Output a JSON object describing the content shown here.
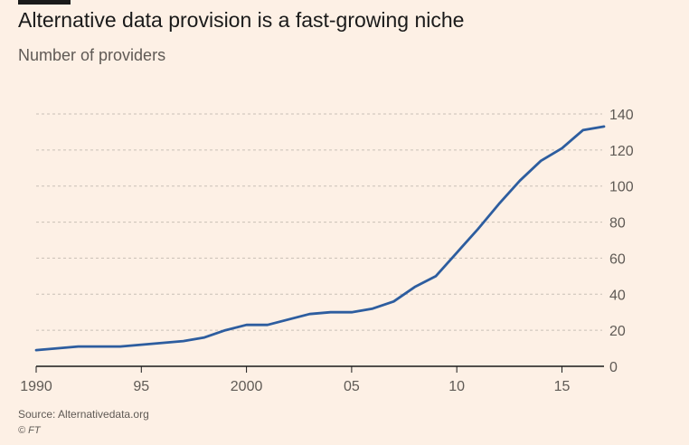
{
  "header": {
    "title": "Alternative data provision is a fast-growing niche",
    "subtitle": "Number of providers"
  },
  "footer": {
    "source": "Source: Alternativedata.org",
    "credit": "© FT"
  },
  "colors": {
    "background": "#fdf0e5",
    "line": "#2d5d9f",
    "grid": "#c9c0b6",
    "text": "#5f5a55"
  },
  "chart_data": {
    "type": "line",
    "title": "Alternative data provision is a fast-growing niche",
    "subtitle": "Number of providers",
    "xlabel": "",
    "ylabel": "",
    "x": [
      1990,
      1991,
      1992,
      1993,
      1994,
      1995,
      1996,
      1997,
      1998,
      1999,
      2000,
      2001,
      2002,
      2003,
      2004,
      2005,
      2006,
      2007,
      2008,
      2009,
      2010,
      2011,
      2012,
      2013,
      2014,
      2015,
      2016,
      2017
    ],
    "series": [
      {
        "values": [
          9,
          10,
          11,
          11,
          11,
          12,
          13,
          14,
          16,
          20,
          23,
          23,
          26,
          29,
          30,
          30,
          32,
          36,
          44,
          50,
          63,
          76,
          90,
          103,
          114,
          121,
          131,
          133
        ]
      }
    ],
    "xlim": [
      1990,
      2017
    ],
    "ylim": [
      0,
      140
    ],
    "x_ticks": [
      {
        "value": 1990,
        "label": "1990"
      },
      {
        "value": 1995,
        "label": "95"
      },
      {
        "value": 2000,
        "label": "2000"
      },
      {
        "value": 2005,
        "label": "05"
      },
      {
        "value": 2010,
        "label": "10"
      },
      {
        "value": 2015,
        "label": "15"
      }
    ],
    "y_ticks": [
      0,
      20,
      40,
      60,
      80,
      100,
      120,
      140
    ],
    "y_axis_side": "right",
    "grid": "horizontal dashed"
  }
}
